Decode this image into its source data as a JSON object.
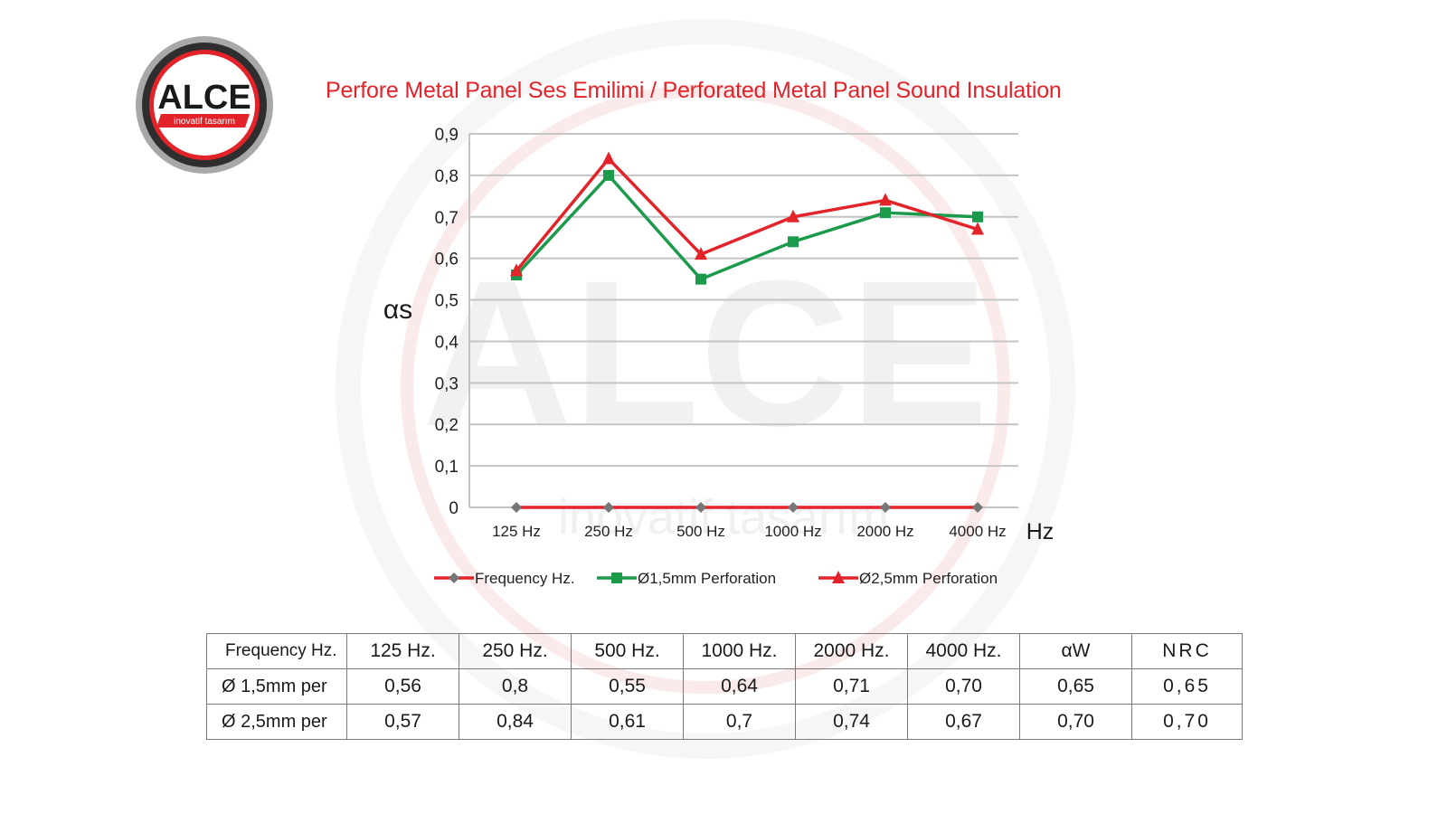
{
  "logo": {
    "brand": "ALCE",
    "tagline": "inovatif tasarım",
    "watermark_brand": "ALCE",
    "watermark_tagline": "inovatif tasarım"
  },
  "title": "Perfore Metal Panel Ses Emilimi / Perforated Metal Panel Sound Insulation",
  "colors": {
    "accent_red": "#e3232a",
    "green": "#1a9a4a",
    "gray_marker": "#777777",
    "grid": "#c4c4c4"
  },
  "chart_data": {
    "type": "line",
    "categories": [
      "125 Hz",
      "250 Hz",
      "500 Hz",
      "1000 Hz",
      "2000 Hz",
      "4000 Hz"
    ],
    "ylabel": "αs",
    "xlabel": "Hz",
    "ylim": [
      0,
      0.9
    ],
    "yticks": [
      "0",
      "0,1",
      "0,2",
      "0,3",
      "0,4",
      "0,5",
      "0,6",
      "0,7",
      "0,8",
      "0,9"
    ],
    "grid": true,
    "legend": "bottom",
    "series": [
      {
        "name": "Frequency Hz.",
        "values": [
          0,
          0,
          0,
          0,
          0,
          0
        ],
        "line_color": "#e3232a",
        "marker": "diamond",
        "marker_color": "#777777"
      },
      {
        "name": "Ø1,5mm Perforation",
        "values": [
          0.56,
          0.8,
          0.55,
          0.64,
          0.71,
          0.7
        ],
        "line_color": "#1a9a4a",
        "marker": "square",
        "marker_color": "#1a9a4a"
      },
      {
        "name": "Ø2,5mm Perforation",
        "values": [
          0.57,
          0.84,
          0.61,
          0.7,
          0.74,
          0.67
        ],
        "line_color": "#e3232a",
        "marker": "triangle",
        "marker_color": "#e3232a"
      }
    ]
  },
  "table": {
    "header": [
      "Frequency Hz.",
      "125 Hz.",
      "250 Hz.",
      "500 Hz.",
      "1000 Hz.",
      "2000 Hz.",
      "4000 Hz.",
      "αW",
      "NRC"
    ],
    "rows": [
      [
        "Ø 1,5mm per",
        "0,56",
        "0,8",
        "0,55",
        "0,64",
        "0,71",
        "0,70",
        "0,65",
        "0,65"
      ],
      [
        "Ø 2,5mm per",
        "0,57",
        "0,84",
        "0,61",
        "0,7",
        "0,74",
        "0,67",
        "0,70",
        "0,70"
      ]
    ]
  }
}
